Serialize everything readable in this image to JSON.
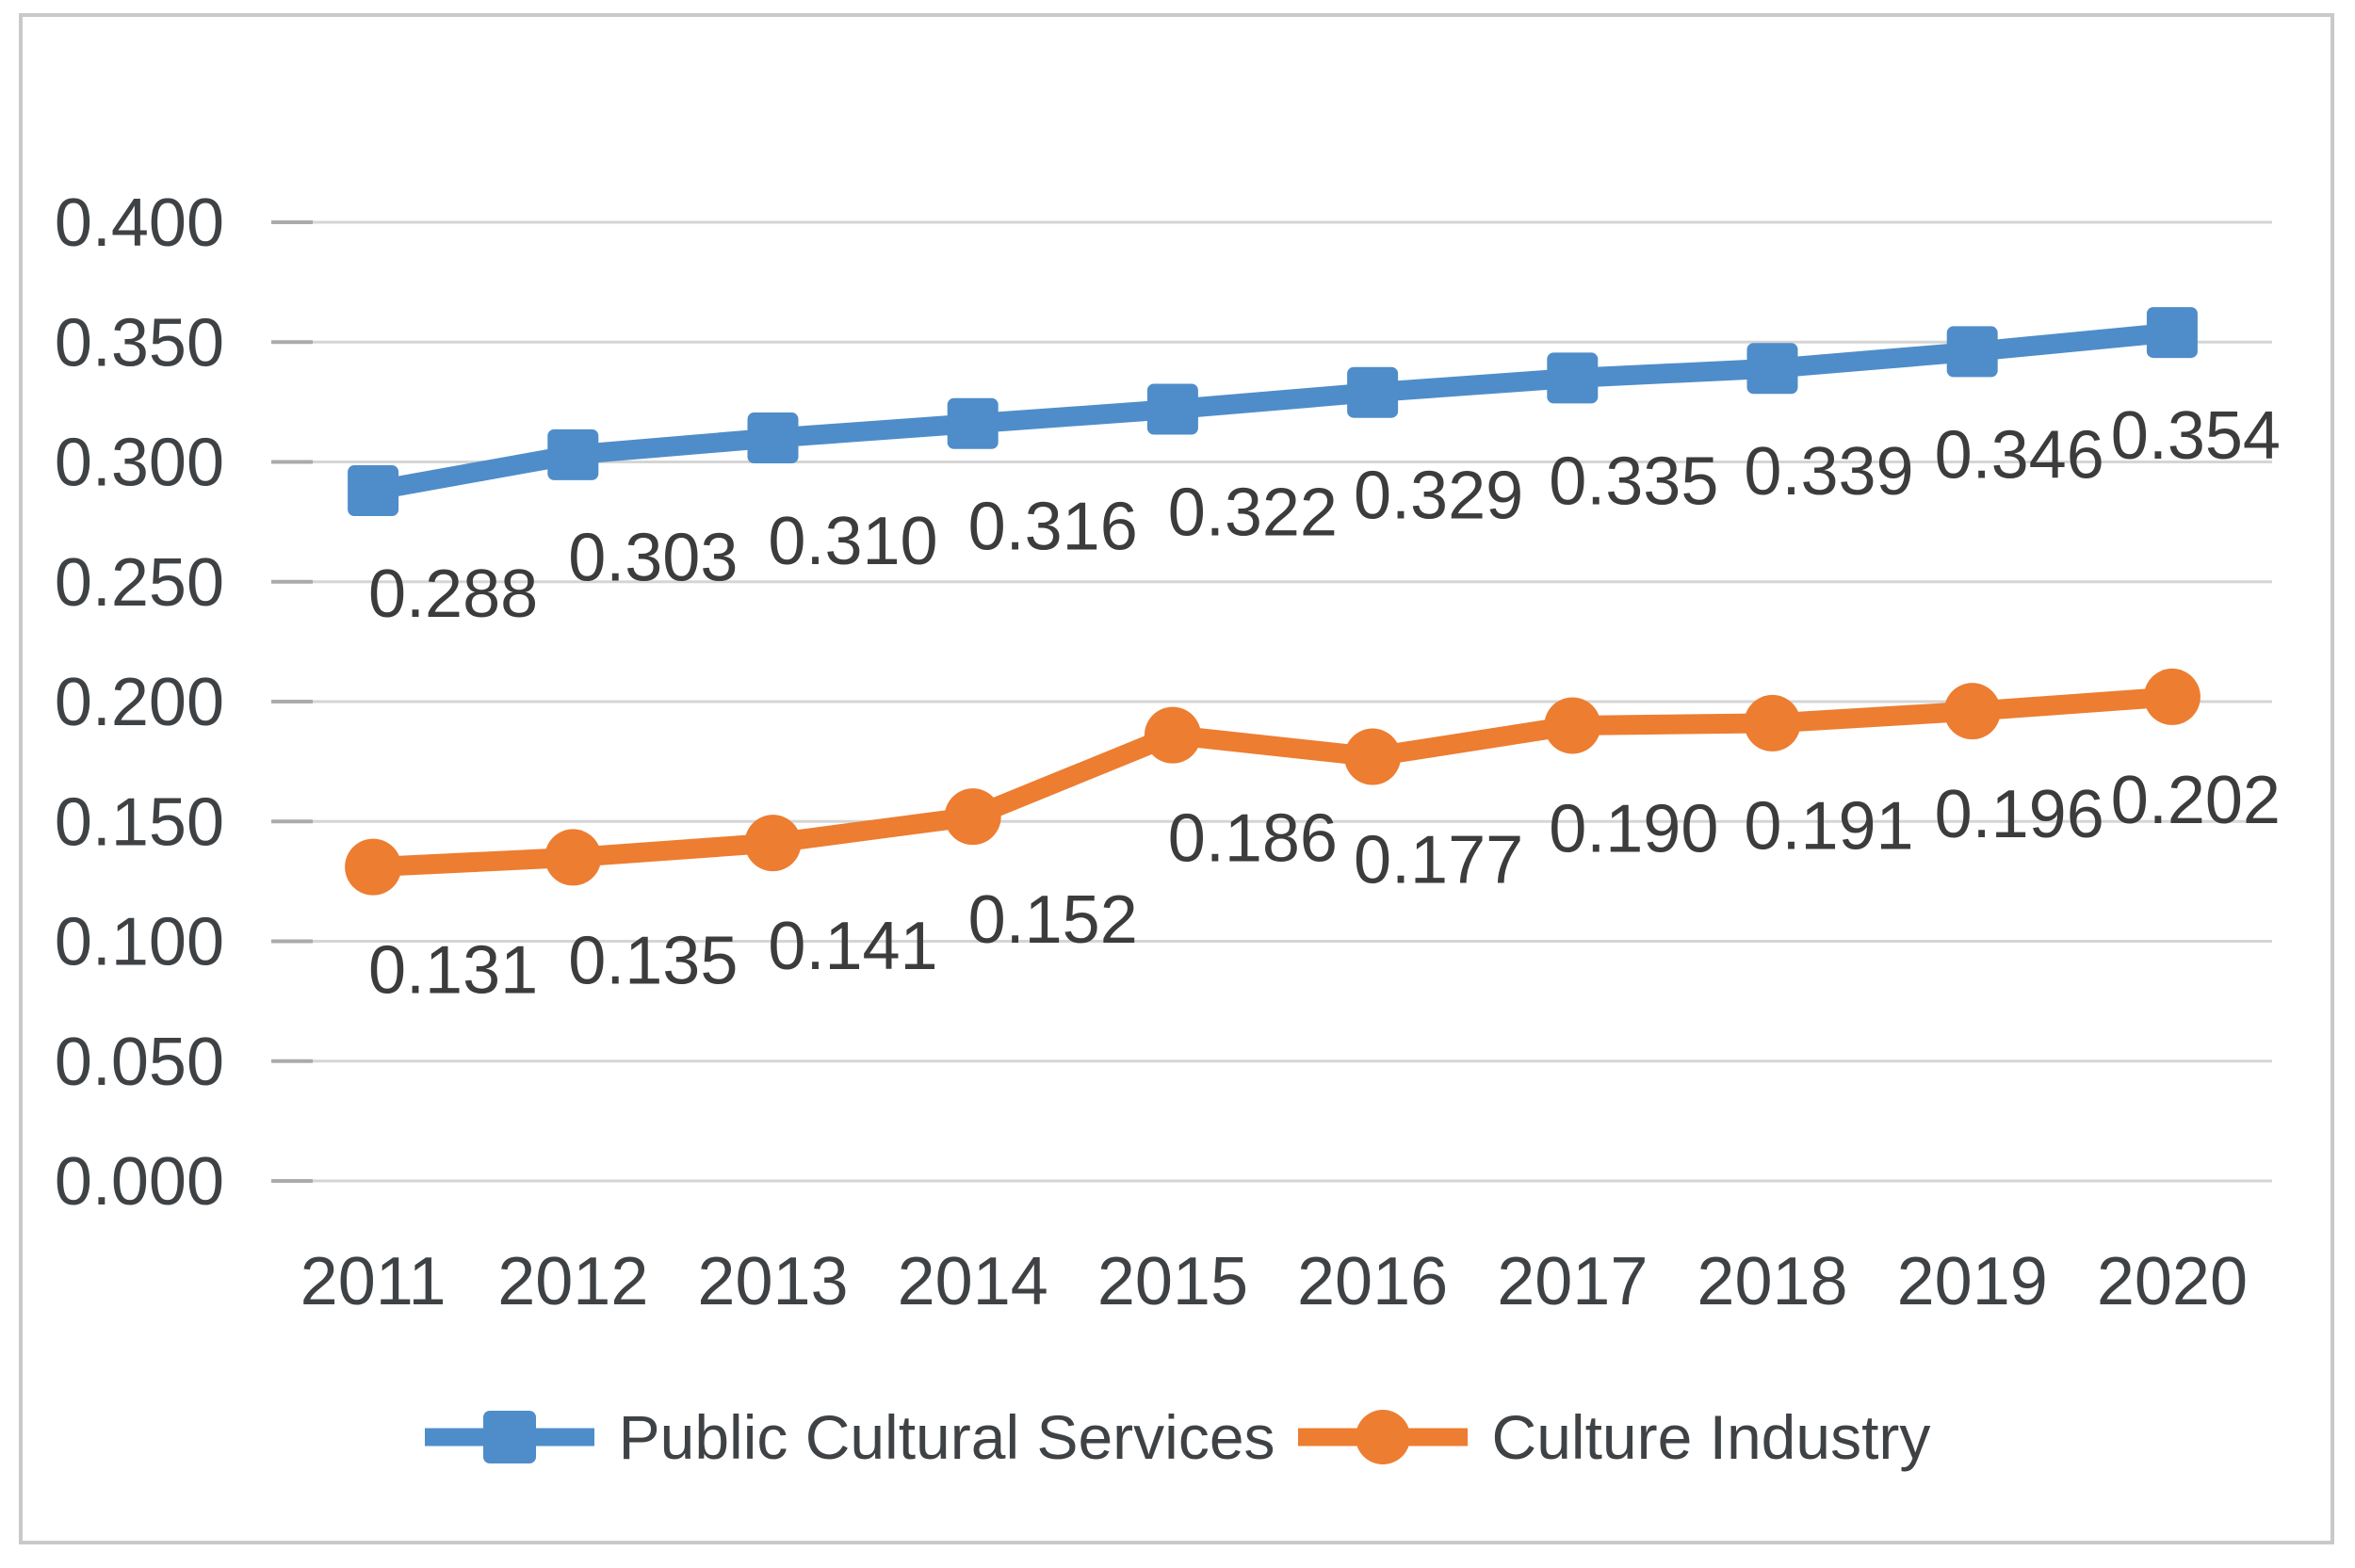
{
  "chart_data": {
    "type": "line",
    "title": "",
    "xlabel": "",
    "ylabel": "",
    "categories": [
      "2011",
      "2012",
      "2013",
      "2014",
      "2015",
      "2016",
      "2017",
      "2018",
      "2019",
      "2020"
    ],
    "series": [
      {
        "name": "Public Cultural Services",
        "color": "#4e8dc9",
        "marker": "square",
        "values": [
          0.288,
          0.303,
          0.31,
          0.316,
          0.322,
          0.329,
          0.335,
          0.339,
          0.346,
          0.354
        ],
        "point_labels": [
          "0.288",
          "0.303",
          "0.310",
          "0.316",
          "0.322",
          "0.329",
          "0.335",
          "0.339",
          "0.346",
          "0.354"
        ]
      },
      {
        "name": "Culture Industry",
        "color": "#ed7d31",
        "marker": "circle",
        "values": [
          0.131,
          0.135,
          0.141,
          0.152,
          0.186,
          0.177,
          0.19,
          0.191,
          0.196,
          0.202
        ],
        "point_labels": [
          "0.131",
          "0.135",
          "0.141",
          "0.152",
          "0.186",
          "0.177",
          "0.190",
          "0.191",
          "0.196",
          "0.202"
        ]
      }
    ],
    "y_ticks": [
      "0.400",
      "0.350",
      "0.300",
      "0.250",
      "0.200",
      "0.150",
      "0.100",
      "0.050",
      "0.000"
    ],
    "ylim": [
      0.0,
      0.4
    ],
    "y_step": 0.05,
    "grid": true,
    "legend_position": "bottom"
  },
  "colors": {
    "background": "#ffffff",
    "frame_border": "#c9c9c9",
    "gridline": "#d5d5d5",
    "axis_tick": "#ababab",
    "label_text": "#3f4245"
  }
}
